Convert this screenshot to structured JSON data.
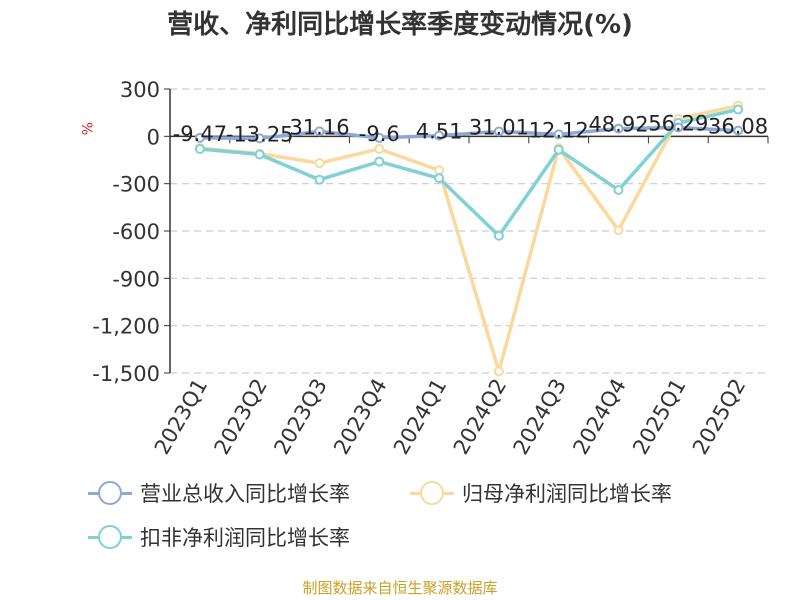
{
  "title": "营收、净利同比增长率季度变动情况(%)",
  "unit_label": "%",
  "source": "制图数据来自恒生聚源数据库",
  "chart_data": {
    "type": "line",
    "title": "营收、净利同比增长率季度变动情况(%)",
    "ylabel": "%",
    "categories": [
      "2023Q1",
      "2023Q2",
      "2023Q3",
      "2023Q4",
      "2024Q1",
      "2024Q2",
      "2024Q3",
      "2024Q4",
      "2025Q1",
      "2025Q2"
    ],
    "yticks": [
      300,
      0,
      -300,
      -600,
      -900,
      -1200,
      -1500
    ],
    "ytick_labels": [
      "300",
      "0",
      "-300",
      "-600",
      "-900",
      "-1,200",
      "-1,500"
    ],
    "ylim": [
      -1500,
      300
    ],
    "grid": true,
    "legend_position": "bottom",
    "series": [
      {
        "name": "营业总收入同比增长率",
        "color": "#8fa8d8",
        "values": [
          -9.47,
          -13.25,
          31.16,
          -9.6,
          4.51,
          31.01,
          12.12,
          48.92,
          56.29,
          36.08
        ],
        "labels": [
          "-9.47",
          "-13.25",
          "31.16",
          "-9.6",
          "4.51",
          "31.01",
          "12.12",
          "48.92",
          "56.29",
          "36.08"
        ]
      },
      {
        "name": "归母净利润同比增长率",
        "color": "#fbd89b",
        "values": [
          -75,
          -110,
          -170,
          -80,
          -215,
          -1490,
          -75,
          -595,
          110,
          195
        ]
      },
      {
        "name": "扣非净利润同比增长率",
        "color": "#7fd1d3",
        "values": [
          -80,
          -115,
          -275,
          -160,
          -265,
          -630,
          -85,
          -340,
          85,
          170
        ]
      }
    ]
  }
}
